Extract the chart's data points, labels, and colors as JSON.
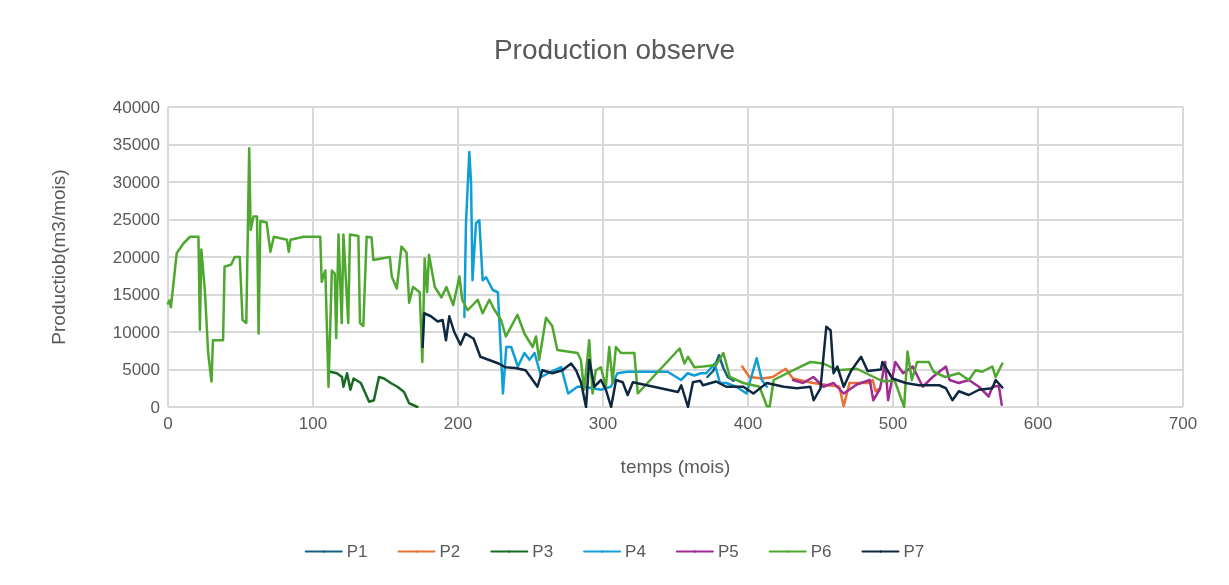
{
  "chart_data": {
    "type": "line",
    "title": "Production observe",
    "xlabel": "temps (mois)",
    "ylabel": "Productiob(m3/mois)",
    "xlim": [
      0,
      700
    ],
    "xticks": [
      0,
      100,
      200,
      300,
      400,
      500,
      600,
      700
    ],
    "ylim": [
      0,
      40000
    ],
    "yticks": [
      0,
      5000,
      10000,
      15000,
      20000,
      25000,
      30000,
      35000,
      40000
    ],
    "grid": true,
    "legend": "bottom",
    "marker": "none",
    "line_style": "solid",
    "series": [
      {
        "name": "P1",
        "color": "#156082",
        "x": [
          372,
          376,
          380,
          383,
          386,
          390
        ],
        "values": [
          4000,
          4800,
          6900,
          5200,
          4000,
          3500
        ]
      },
      {
        "name": "P2",
        "color": "#e97132",
        "x": [
          396,
          401,
          410,
          417,
          426,
          431,
          445,
          463,
          466,
          470,
          484,
          486,
          488,
          490
        ],
        "values": [
          5400,
          4000,
          3800,
          4000,
          5100,
          3800,
          3200,
          2700,
          100,
          3200,
          3200,
          3600,
          2100,
          2400
        ]
      },
      {
        "name": "P3",
        "color": "#196b24",
        "x": [
          110.7,
          111.9,
          116.5,
          120,
          121,
          123.5,
          125.8,
          128,
          133,
          138.7,
          142,
          145.5,
          149,
          153.6,
          158.2,
          162.8,
          166.3,
          172
        ],
        "values": [
          4700,
          4700,
          4500,
          4000,
          2700,
          4500,
          2300,
          3800,
          3200,
          700,
          900,
          4000,
          3800,
          3200,
          2700,
          2000,
          500,
          0
        ]
      },
      {
        "name": "P4",
        "color": "#0f9ed5",
        "x": [
          204.4,
          205.5,
          207.8,
          209,
          210,
          212.4,
          214.7,
          217,
          219.4,
          224,
          227.5,
          231,
          233.3,
          236.7,
          241.3,
          245.8,
          249.3,
          252.8,
          257.4,
          264.3,
          271.2,
          276,
          282.4,
          287,
          298.5,
          305.4,
          310,
          316.9,
          344.6,
          353.8,
          358.4,
          363,
          367.5,
          371.3,
          377,
          380.6,
          385,
          392,
          399,
          406,
          409.5,
          413
        ],
        "values": [
          12000,
          24500,
          34000,
          29900,
          16900,
          24500,
          24900,
          16900,
          17300,
          15600,
          15300,
          1800,
          8000,
          8000,
          5400,
          7200,
          6300,
          7200,
          4000,
          4700,
          5300,
          1800,
          2700,
          2700,
          2300,
          2700,
          4500,
          4700,
          4700,
          3600,
          4500,
          4200,
          4500,
          4500,
          5800,
          3200,
          3200,
          2700,
          1800,
          6500,
          3600,
          2700
        ]
      },
      {
        "name": "P5",
        "color": "#a02b93",
        "x": [
          431,
          438,
          445,
          452,
          459,
          466,
          475,
          484,
          486.4,
          491,
          494.6,
          496.6,
          501.6,
          507,
          513.6,
          520.5,
          527.4,
          536.5,
          539,
          545.4,
          552.3,
          559.3,
          566,
          568.5,
          573,
          575
        ],
        "values": [
          3600,
          3200,
          4000,
          2700,
          3200,
          1800,
          3000,
          3600,
          900,
          2400,
          6000,
          900,
          6000,
          4500,
          5400,
          2700,
          4000,
          5400,
          3600,
          3200,
          3600,
          2700,
          1400,
          2700,
          2800,
          300
        ]
      },
      {
        "name": "P6",
        "color": "#4ea72e",
        "x": [
          0,
          1,
          2,
          6,
          10.6,
          15.2,
          21,
          22,
          23,
          25.4,
          27.7,
          30,
          31,
          38,
          39,
          43.6,
          46,
          49.5,
          51.4,
          54,
          56,
          57,
          59,
          61.4,
          62.5,
          63.7,
          68,
          70.6,
          73,
          82,
          83.3,
          84.5,
          93.7,
          105,
          106,
          108.5,
          110.7,
          113,
          115,
          116,
          117.6,
          119.8,
          121,
          124.3,
          125.5,
          131.3,
          132.4,
          134.7,
          137,
          140.4,
          141.6,
          153,
          154.3,
          157.8,
          161,
          164.5,
          166.3,
          169,
          173.6,
          175.4,
          177,
          178.7,
          180,
          184,
          188.6,
          192,
          196.7,
          201,
          202.9,
          206.7,
          213.6,
          217,
          221.6,
          225,
          229.7,
          233,
          241,
          245.8,
          251.5,
          253.8,
          256,
          260.7,
          265,
          268.5,
          282.4,
          284.7,
          287,
          290.5,
          292.8,
          295,
          298.5,
          302,
          304.3,
          306.6,
          308.9,
          312.4,
          321.6,
          324,
          352.8,
          356.2,
          358.6,
          363,
          369,
          378,
          383,
          387.5,
          396.8,
          408,
          413,
          415,
          417.7,
          429,
          443,
          452,
          461.6,
          475,
          491,
          495,
          501,
          507.7,
          510,
          513,
          516.6,
          524.7,
          528,
          536,
          545.4,
          552.3,
          557,
          561.5,
          568.5,
          570.8,
          575.4
        ],
        "values": [
          13800,
          14200,
          13300,
          20500,
          21800,
          22700,
          22700,
          10300,
          21000,
          15600,
          7200,
          3400,
          8900,
          8900,
          18700,
          19000,
          20000,
          20000,
          11600,
          11200,
          34500,
          23600,
          25400,
          25400,
          9800,
          24800,
          24600,
          20700,
          22700,
          22300,
          20700,
          22300,
          22700,
          22700,
          16700,
          18200,
          2700,
          18200,
          17800,
          9200,
          23000,
          11200,
          23000,
          11200,
          23000,
          22800,
          11200,
          10800,
          22700,
          22600,
          19600,
          20000,
          17400,
          15800,
          21400,
          20600,
          13900,
          16000,
          15300,
          6000,
          19800,
          15300,
          20300,
          16000,
          14600,
          16000,
          13600,
          17400,
          14300,
          12900,
          14300,
          12500,
          14300,
          13000,
          11600,
          9400,
          12300,
          9800,
          8000,
          9400,
          6300,
          11900,
          10800,
          7600,
          7200,
          6300,
          2300,
          8900,
          1800,
          4900,
          5300,
          2700,
          8000,
          3300,
          8000,
          7200,
          7200,
          1800,
          7800,
          5800,
          6700,
          5300,
          5400,
          5600,
          7200,
          4000,
          3200,
          2700,
          100,
          100,
          3600,
          4700,
          6000,
          5800,
          4900,
          5100,
          3600,
          3400,
          3600,
          0,
          7400,
          3600,
          6000,
          6000,
          4700,
          4000,
          4500,
          3600,
          4900,
          4700,
          5400,
          4000,
          5800
        ]
      },
      {
        "name": "P7",
        "color": "#0e2841",
        "x": [
          175.6,
          176.7,
          181.3,
          186,
          189.4,
          191.7,
          194,
          197.4,
          201.7,
          205,
          210.8,
          215.4,
          221,
          228,
          232.7,
          239.6,
          246.6,
          250,
          254.8,
          258.2,
          265,
          272,
          278,
          281.4,
          284.8,
          288.3,
          290.5,
          294,
          298.6,
          302,
          305.6,
          309,
          313.6,
          317,
          320.6,
          351.7,
          354,
          358.6,
          362,
          367,
          369,
          378,
          385,
          396.8,
          403.7,
          413,
          424.6,
          433.8,
          443,
          445.3,
          450,
          454,
          457,
          459,
          461.6,
          466,
          471,
          478,
          482.5,
          491.7,
          492.7,
          499.6,
          508.8,
          518,
          531.9,
          536.5,
          541,
          545.4,
          552.3,
          559.3,
          568.5,
          570.8,
          575.4
        ],
        "values": [
          8000,
          12500,
          12100,
          11400,
          11600,
          8900,
          12100,
          10000,
          8300,
          9800,
          9100,
          6700,
          6300,
          5800,
          5300,
          5200,
          4900,
          4000,
          2700,
          4900,
          4500,
          4900,
          5800,
          4900,
          3300,
          0,
          6300,
          2700,
          3600,
          2300,
          0,
          3600,
          3300,
          1600,
          3300,
          2000,
          2900,
          0,
          3300,
          3500,
          2900,
          3400,
          2700,
          2700,
          1800,
          3200,
          2700,
          2500,
          2700,
          900,
          2500,
          10700,
          10200,
          4500,
          5400,
          2700,
          4800,
          6700,
          4800,
          5000,
          6000,
          3800,
          3200,
          2900,
          2900,
          2500,
          900,
          2100,
          1600,
          2300,
          2500,
          3600,
          2600
        ]
      }
    ]
  }
}
